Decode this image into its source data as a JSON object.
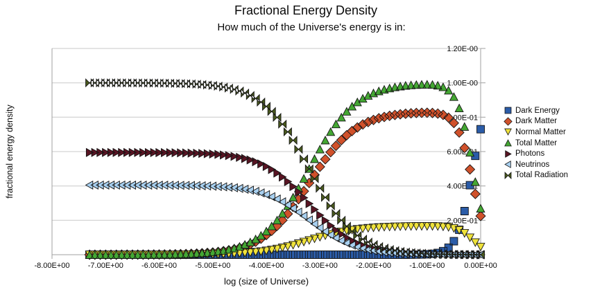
{
  "chart": {
    "title": "Fractional Energy Density",
    "subtitle": "How much of the Universe's energy is in:",
    "x_axis_title": "log (size of Universe)",
    "y_axis_title": "fractional energy density"
  },
  "colors": {
    "gridline": "#c8c8c8",
    "axis_line": "#a0a0a0",
    "marker_stroke": "#141414",
    "text": "#0a0a0a"
  },
  "chart_data": {
    "type": "scatter",
    "title": "Fractional Energy Density",
    "subtitle": "How much of the Universe's energy is in:",
    "xlabel": "log (size of Universe)",
    "ylabel": "fractional energy density",
    "xlim": [
      -8,
      0
    ],
    "ylim": [
      0,
      1.2
    ],
    "grid": "horizontal",
    "legend_position": "right",
    "x_ticks": [
      -8,
      -7,
      -6,
      -5,
      -4,
      -3,
      -2,
      -1,
      0
    ],
    "x_tick_labels": [
      "-8.00E+00",
      "-7.00E+00",
      "-6.00E+00",
      "-5.00E+00",
      "-4.00E+00",
      "-3.00E+00",
      "-2.00E+00",
      "-1.00E+00",
      "0.00E+00"
    ],
    "y_ticks": [
      0,
      0.2,
      0.4,
      0.6,
      0.8,
      1.0,
      1.2
    ],
    "y_tick_labels": [
      "0.00E+00",
      "2.00E-01",
      "4.00E-01",
      "6.00E-01",
      "8.00E-01",
      "1.00E-00",
      "1.20E-00"
    ],
    "x": [
      -7.3,
      -7.2,
      -7.1,
      -7,
      -6.9,
      -6.8,
      -6.7,
      -6.6,
      -6.5,
      -6.4,
      -6.3,
      -6.2,
      -6.1,
      -6,
      -5.9,
      -5.8,
      -5.7,
      -5.6,
      -5.5,
      -5.4,
      -5.3,
      -5.2,
      -5.1,
      -5,
      -4.9,
      -4.8,
      -4.7,
      -4.6,
      -4.5,
      -4.4,
      -4.3,
      -4.2,
      -4.1,
      -4,
      -3.9,
      -3.8,
      -3.7,
      -3.6,
      -3.5,
      -3.4,
      -3.3,
      -3.2,
      -3.1,
      -3,
      -2.9,
      -2.8,
      -2.7,
      -2.6,
      -2.5,
      -2.4,
      -2.3,
      -2.2,
      -2.1,
      -2,
      -1.9,
      -1.8,
      -1.7,
      -1.6,
      -1.5,
      -1.4,
      -1.3,
      -1.2,
      -1.1,
      -1,
      -0.9,
      -0.8,
      -0.7,
      -0.6,
      -0.5,
      -0.4,
      -0.3,
      -0.2,
      -0.1,
      0
    ],
    "series": [
      {
        "name": "Dark Energy",
        "key": "dark_energy",
        "marker": "square",
        "color": "#2b5ca8",
        "values": [
          0,
          0,
          0,
          0,
          0,
          0,
          0,
          0,
          0,
          0,
          0,
          0,
          0,
          0,
          0,
          0,
          0,
          0,
          0,
          0,
          0,
          0,
          0,
          0,
          0,
          0,
          0,
          0,
          0,
          0,
          0,
          0,
          0,
          0,
          0,
          0,
          0,
          0,
          0,
          0,
          0,
          0,
          0,
          0,
          0,
          0,
          0,
          0,
          0,
          0,
          0,
          0,
          0,
          0,
          0,
          0,
          0,
          0,
          0.0001,
          0.0002,
          0.0003,
          0.0007,
          0.0013,
          0.0027,
          0.0053,
          0.0106,
          0.021,
          0.041,
          0.0786,
          0.1455,
          0.2536,
          0.4042,
          0.5752,
          0.7299
        ]
      },
      {
        "name": "Dark Matter",
        "key": "dark_matter",
        "marker": "diamond",
        "color": "#d0512b",
        "values": [
          0.0001,
          0.0001,
          0.0001,
          0.0001,
          0.0002,
          0.0002,
          0.0003,
          0.0003,
          0.0004,
          0.0005,
          0.0007,
          0.0008,
          0.0011,
          0.0013,
          0.0017,
          0.0021,
          0.0026,
          0.0033,
          0.0042,
          0.0052,
          0.0066,
          0.0083,
          0.0104,
          0.013,
          0.0163,
          0.0205,
          0.0256,
          0.032,
          0.0398,
          0.0495,
          0.0614,
          0.0759,
          0.0933,
          0.1142,
          0.1388,
          0.1676,
          0.2005,
          0.2376,
          0.2786,
          0.3228,
          0.3693,
          0.4171,
          0.4648,
          0.5113,
          0.5555,
          0.5964,
          0.6334,
          0.6663,
          0.6949,
          0.7195,
          0.7403,
          0.7577,
          0.7721,
          0.784,
          0.7937,
          0.8015,
          0.8078,
          0.813,
          0.8171,
          0.8203,
          0.8227,
          0.8245,
          0.8257,
          0.8259,
          0.8248,
          0.8212,
          0.8133,
          0.7972,
          0.7663,
          0.7109,
          0.6213,
          0.496,
          0.3537,
          0.225
        ]
      },
      {
        "name": "Normal Matter",
        "key": "normal_matter",
        "marker": "triangle-down",
        "color": "#efe23b",
        "values": [
          0,
          0,
          0,
          0,
          0,
          0,
          0.0001,
          0.0001,
          0.0001,
          0.0001,
          0.0001,
          0.0002,
          0.0002,
          0.0003,
          0.0003,
          0.0004,
          0.0005,
          0.0007,
          0.0008,
          0.001,
          0.0013,
          0.0017,
          0.0021,
          0.0026,
          0.0033,
          0.0041,
          0.0051,
          0.0064,
          0.008,
          0.0099,
          0.0123,
          0.0152,
          0.0187,
          0.0228,
          0.0278,
          0.0335,
          0.0401,
          0.0475,
          0.0557,
          0.0646,
          0.0739,
          0.0834,
          0.093,
          0.1023,
          0.1111,
          0.1193,
          0.1267,
          0.1333,
          0.139,
          0.1439,
          0.1481,
          0.1516,
          0.1544,
          0.1568,
          0.1587,
          0.1603,
          0.1616,
          0.1626,
          0.1634,
          0.1641,
          0.1645,
          0.1649,
          0.1651,
          0.1652,
          0.165,
          0.1642,
          0.1627,
          0.1594,
          0.1533,
          0.1422,
          0.1243,
          0.0992,
          0.0707,
          0.045
        ]
      },
      {
        "name": "Total Matter",
        "key": "total_matter",
        "marker": "triangle-up",
        "color": "#44a733",
        "values": [
          0.0001,
          0.0001,
          0.0001,
          0.0002,
          0.0002,
          0.0003,
          0.0003,
          0.0004,
          0.0005,
          0.0006,
          0.0008,
          0.001,
          0.0013,
          0.0016,
          0.002,
          0.0025,
          0.0032,
          0.004,
          0.005,
          0.0063,
          0.0079,
          0.0099,
          0.0125,
          0.0156,
          0.0196,
          0.0246,
          0.0307,
          0.0384,
          0.0478,
          0.0595,
          0.0737,
          0.0911,
          0.112,
          0.137,
          0.1666,
          0.2011,
          0.2406,
          0.2852,
          0.3343,
          0.3873,
          0.4432,
          0.5005,
          0.5578,
          0.6136,
          0.6666,
          0.7157,
          0.7601,
          0.7996,
          0.8339,
          0.8634,
          0.8884,
          0.9093,
          0.9265,
          0.9408,
          0.9524,
          0.9618,
          0.9694,
          0.9756,
          0.9805,
          0.9844,
          0.9873,
          0.9895,
          0.9908,
          0.9911,
          0.9897,
          0.9855,
          0.976,
          0.9566,
          0.9195,
          0.8531,
          0.7455,
          0.5952,
          0.4245,
          0.27
        ]
      },
      {
        "name": "Photons",
        "key": "photons",
        "marker": "triangle-right",
        "color": "#581423",
        "values": [
          0.5949,
          0.5949,
          0.5949,
          0.5949,
          0.5949,
          0.5948,
          0.5948,
          0.5948,
          0.5947,
          0.5946,
          0.5945,
          0.5944,
          0.5942,
          0.594,
          0.5938,
          0.5935,
          0.5931,
          0.5926,
          0.592,
          0.5913,
          0.5903,
          0.5891,
          0.5876,
          0.5857,
          0.5833,
          0.5804,
          0.5767,
          0.5722,
          0.5666,
          0.5596,
          0.5511,
          0.5408,
          0.5284,
          0.5135,
          0.4959,
          0.4753,
          0.4518,
          0.4253,
          0.3961,
          0.3646,
          0.3313,
          0.2972,
          0.2631,
          0.2299,
          0.1984,
          0.1692,
          0.1427,
          0.1192,
          0.0988,
          0.0813,
          0.0664,
          0.054,
          0.0437,
          0.0352,
          0.0283,
          0.0227,
          0.0182,
          0.0145,
          0.0116,
          0.0093,
          0.0074,
          0.0059,
          0.0047,
          0.0037,
          0.0029,
          0.0023,
          0.0018,
          0.0014,
          0.0011,
          0.0008,
          0.0006,
          0.0004,
          0.0002,
          0.0001
        ]
      },
      {
        "name": "Neutrinos",
        "key": "neutrinos",
        "marker": "triangle-left",
        "color": "#a8d0f0",
        "values": [
          0.4049,
          0.4049,
          0.4049,
          0.4049,
          0.4049,
          0.4049,
          0.4049,
          0.4048,
          0.4048,
          0.4047,
          0.4047,
          0.4046,
          0.4045,
          0.4043,
          0.4042,
          0.404,
          0.4037,
          0.4034,
          0.403,
          0.4025,
          0.4018,
          0.401,
          0.4,
          0.3987,
          0.3971,
          0.395,
          0.3926,
          0.3895,
          0.3856,
          0.3809,
          0.3752,
          0.3681,
          0.3596,
          0.3495,
          0.3375,
          0.3236,
          0.3076,
          0.2895,
          0.2696,
          0.2481,
          0.2255,
          0.2023,
          0.1791,
          0.1565,
          0.135,
          0.1151,
          0.0972,
          0.0812,
          0.0673,
          0.0553,
          0.0452,
          0.0367,
          0.0298,
          0.024,
          0.0193,
          0.0155,
          0.0124,
          0.0099,
          0.0079,
          0.0063,
          0.005,
          0.004,
          0.0032,
          0.0025,
          0.002,
          0.0016,
          0.0012,
          0.001,
          0.0007,
          0.0005,
          0.0004,
          0.0002,
          0.0001,
          0.0001
        ]
      },
      {
        "name": "Total Radiation",
        "key": "total_radiation",
        "marker": "bowtie",
        "color": "#4a5a1e",
        "values": [
          0.9999,
          0.9999,
          0.9999,
          0.9998,
          0.9998,
          0.9997,
          0.9997,
          0.9996,
          0.9995,
          0.9994,
          0.9992,
          0.999,
          0.9987,
          0.9984,
          0.998,
          0.9975,
          0.9968,
          0.996,
          0.995,
          0.9937,
          0.9921,
          0.9901,
          0.9875,
          0.9844,
          0.9804,
          0.9754,
          0.9693,
          0.9616,
          0.9522,
          0.9405,
          0.9263,
          0.9089,
          0.888,
          0.863,
          0.8334,
          0.7989,
          0.7594,
          0.7148,
          0.6657,
          0.6127,
          0.5568,
          0.4995,
          0.4422,
          0.3864,
          0.3334,
          0.2843,
          0.2399,
          0.2004,
          0.1661,
          0.1366,
          0.1116,
          0.0907,
          0.0735,
          0.0592,
          0.0476,
          0.0382,
          0.0306,
          0.0244,
          0.0195,
          0.0156,
          0.0124,
          0.0099,
          0.0079,
          0.0062,
          0.005,
          0.0039,
          0.0031,
          0.0024,
          0.0018,
          0.0013,
          0.0009,
          0.0006,
          0.0003,
          0.0002
        ]
      }
    ]
  },
  "legend": {
    "items": [
      {
        "label": "Dark Energy",
        "series": "dark_energy"
      },
      {
        "label": "Dark Matter",
        "series": "dark_matter"
      },
      {
        "label": "Normal Matter",
        "series": "normal_matter"
      },
      {
        "label": "Total Matter",
        "series": "total_matter"
      },
      {
        "label": "Photons",
        "series": "photons"
      },
      {
        "label": "Neutrinos",
        "series": "neutrinos"
      },
      {
        "label": "Total Radiation",
        "series": "total_radiation"
      }
    ]
  }
}
